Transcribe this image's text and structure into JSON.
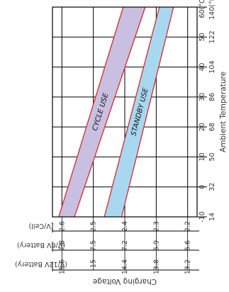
{
  "chart_data": {
    "type": "area",
    "title": "",
    "xlabel": "Ambient Temperature",
    "ylabel": "Charging Voltage",
    "temperature_ticks": [
      {
        "c": "-10",
        "f": "14"
      },
      {
        "c": "0",
        "f": "32"
      },
      {
        "c": "10",
        "f": "50"
      },
      {
        "c": "20",
        "f": "68"
      },
      {
        "c": "30",
        "f": "86"
      },
      {
        "c": "40",
        "f": "104"
      },
      {
        "c": "50",
        "f": "122"
      },
      {
        "c": "60(°C)",
        "f": "140(°F)"
      }
    ],
    "temperature_range_c": [
      -10,
      60
    ],
    "voltage_ticks": [
      {
        "v12": "15.6",
        "v6": "7.8",
        "cell": "2.6"
      },
      {
        "v12": "15",
        "v6": "7.5",
        "cell": "2.5"
      },
      {
        "v12": "14.4",
        "v6": "7.2",
        "cell": "2.4"
      },
      {
        "v12": "13.8",
        "v6": "6.9",
        "cell": "2.3"
      },
      {
        "v12": "13.2",
        "v6": "6.6",
        "cell": "2.2"
      }
    ],
    "cell_voltage_range": [
      2.17,
      2.63
    ],
    "voltage_scale_labels": [
      "(V/Cell)",
      "(V/6V Battery)",
      "(V/12V Battery)"
    ],
    "series": [
      {
        "name": "CYCLE USE",
        "color": "#c9bfe0",
        "edge_color": "#d42a2a",
        "x": [
          -10,
          60
        ],
        "upper": [
          2.61,
          2.405
        ],
        "lower": [
          2.56,
          2.335
        ]
      },
      {
        "name": "STANDBY USE",
        "color": "#a8d8f0",
        "edge_color": "#d42a2a",
        "x": [
          -10,
          60
        ],
        "upper": [
          2.465,
          2.29
        ],
        "lower": [
          2.41,
          2.245
        ]
      }
    ],
    "grid": true
  }
}
